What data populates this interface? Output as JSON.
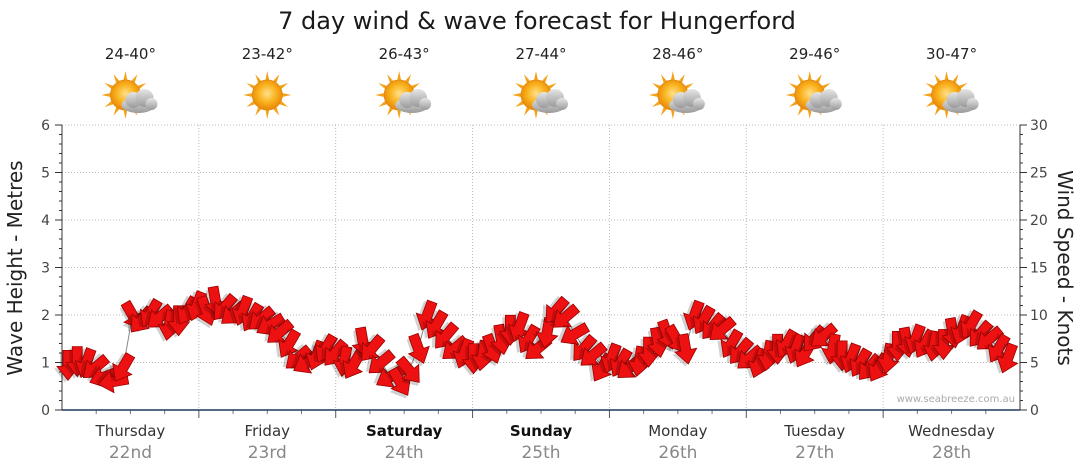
{
  "chart_data": {
    "type": "line",
    "title": "7 day wind & wave forecast for Hungerford",
    "ylabel_left": "Wave Height - Metres",
    "ylabel_right": "Wind Speed - Knots",
    "ylim_left": [
      0,
      6
    ],
    "ylim_right": [
      0,
      30
    ],
    "left_ticks": [
      "0",
      "1",
      "2",
      "3",
      "4",
      "5",
      "6"
    ],
    "right_ticks": [
      "0",
      "5",
      "10",
      "15",
      "20",
      "25",
      "30"
    ],
    "grid": true,
    "credit": "www.seabreeze.com.au",
    "days": [
      {
        "name": "Thursday",
        "date": "22nd",
        "temp": "24-40°",
        "icon": "sun-cloud-icon",
        "bold": false
      },
      {
        "name": "Friday",
        "date": "23rd",
        "temp": "23-42°",
        "icon": "sun-icon",
        "bold": false
      },
      {
        "name": "Saturday",
        "date": "24th",
        "temp": "26-43°",
        "icon": "sun-cloud-icon",
        "bold": true
      },
      {
        "name": "Sunday",
        "date": "25th",
        "temp": "27-44°",
        "icon": "sun-cloud-icon",
        "bold": true
      },
      {
        "name": "Monday",
        "date": "26th",
        "temp": "28-46°",
        "icon": "sun-cloud-icon",
        "bold": false
      },
      {
        "name": "Tuesday",
        "date": "27th",
        "temp": "29-46°",
        "icon": "sun-cloud-icon",
        "bold": false
      },
      {
        "name": "Wednesday",
        "date": "28th",
        "temp": "30-47°",
        "icon": "sun-cloud-icon",
        "bold": false
      }
    ],
    "series": [
      {
        "values_knots": [
          4.8,
          5.2,
          5.0,
          4.5,
          3.5,
          3.0,
          4.5,
          10.0,
          9.5,
          10.2,
          9.8,
          9.0,
          9.5,
          10.5,
          11.0,
          10.5,
          11.5,
          10.8,
          10.2,
          10.5,
          9.8,
          9.6,
          9.0,
          8.2,
          7.0,
          5.5,
          5.0,
          5.8,
          6.5,
          6.0,
          5.2,
          4.8,
          7.2,
          6.5,
          5.0,
          3.5,
          3.0,
          4.2,
          6.5,
          10.0,
          9.0,
          7.8,
          6.5,
          6.0,
          5.5,
          5.8,
          6.5,
          7.5,
          8.5,
          8.8,
          7.5,
          6.5,
          8.2,
          10.5,
          9.8,
          8.0,
          6.5,
          5.8,
          4.5,
          5.5,
          5.0,
          4.5,
          5.2,
          6.2,
          7.2,
          8.0,
          7.5,
          6.5,
          10.0,
          9.5,
          8.8,
          8.5,
          7.0,
          6.2,
          5.5,
          5.0,
          5.8,
          6.5,
          7.0,
          6.5,
          6.0,
          7.5,
          7.8,
          6.5,
          5.8,
          5.5,
          5.0,
          4.5,
          4.5,
          5.5,
          6.8,
          7.2,
          7.5,
          7.0,
          6.8,
          7.0,
          8.2,
          8.5,
          9.0,
          8.0,
          7.5,
          6.5,
          5.5
        ],
        "dir_deg": [
          90,
          90,
          110,
          140,
          160,
          170,
          120,
          60,
          130,
          120,
          140,
          100,
          90,
          120,
          110,
          70,
          80,
          130,
          140,
          110,
          120,
          140,
          150,
          140,
          120,
          140,
          150,
          110,
          120,
          130,
          100,
          120,
          80,
          130,
          140,
          150,
          60,
          50,
          70,
          110,
          120,
          130,
          140,
          110,
          90,
          100,
          70,
          80,
          90,
          110,
          120,
          140,
          100,
          130,
          140,
          150,
          130,
          140,
          120,
          110,
          120,
          140,
          100,
          90,
          80,
          70,
          60,
          80,
          110,
          120,
          130,
          140,
          120,
          130,
          140,
          110,
          100,
          90,
          120,
          110,
          120,
          130,
          140,
          100,
          90,
          110,
          120,
          130,
          120,
          100,
          90,
          80,
          110,
          120,
          100,
          90,
          80,
          110,
          120,
          130,
          140,
          120,
          110
        ]
      }
    ]
  }
}
